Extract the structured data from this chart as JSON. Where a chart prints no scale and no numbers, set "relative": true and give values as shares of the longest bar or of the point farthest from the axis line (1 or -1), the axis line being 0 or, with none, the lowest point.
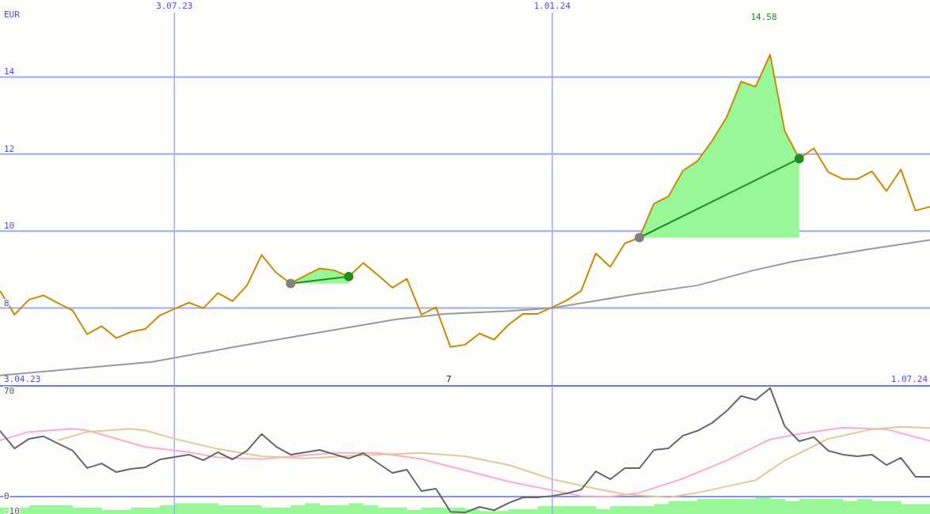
{
  "chart_data": [
    {
      "type": "line",
      "ylabel": "EUR",
      "xlim": [
        "2023-04-10",
        "2024-07-01"
      ],
      "ylim": [
        6,
        16
      ],
      "xticks": [
        {
          "value": "2023-07-03",
          "label": "3.07.23"
        },
        {
          "value": "2024-01-01",
          "label": "1.01.24"
        }
      ],
      "yticks": [
        8,
        10,
        12,
        14
      ],
      "grid": true,
      "x": [
        "2023-04-10",
        "2023-04-17",
        "2023-04-24",
        "2023-05-01",
        "2023-05-08",
        "2023-05-15",
        "2023-05-22",
        "2023-05-29",
        "2023-06-05",
        "2023-06-12",
        "2023-06-19",
        "2023-06-26",
        "2023-07-03",
        "2023-07-10",
        "2023-07-17",
        "2023-07-24",
        "2023-07-31",
        "2023-08-07",
        "2023-08-14",
        "2023-08-21",
        "2023-08-28",
        "2023-09-04",
        "2023-09-11",
        "2023-09-18",
        "2023-09-25",
        "2023-10-02",
        "2023-10-09",
        "2023-10-16",
        "2023-10-23",
        "2023-10-30",
        "2023-11-06",
        "2023-11-13",
        "2023-11-20",
        "2023-11-27",
        "2023-12-04",
        "2023-12-11",
        "2023-12-18",
        "2023-12-25",
        "2024-01-01",
        "2024-01-08",
        "2024-01-15",
        "2024-01-22",
        "2024-01-29",
        "2024-02-05",
        "2024-02-12",
        "2024-02-19",
        "2024-02-26",
        "2024-03-04",
        "2024-03-11",
        "2024-03-18",
        "2024-03-25",
        "2024-04-01",
        "2024-04-08",
        "2024-04-15",
        "2024-04-22",
        "2024-04-29",
        "2024-05-06",
        "2024-05-13",
        "2024-05-20",
        "2024-05-27",
        "2024-06-03",
        "2024-06-10",
        "2024-06-17",
        "2024-06-24",
        "2024-07-01"
      ],
      "series": [
        {
          "color": "#cc8800",
          "values": [
            8.45,
            7.83,
            8.22,
            8.33,
            8.13,
            7.94,
            7.32,
            7.53,
            7.22,
            7.38,
            7.46,
            7.81,
            7.98,
            8.14,
            8.0,
            8.39,
            8.18,
            8.59,
            9.38,
            8.92,
            8.64,
            8.84,
            9.03,
            8.98,
            8.82,
            9.17,
            8.86,
            8.53,
            8.76,
            7.83,
            8.02,
            6.99,
            7.05,
            7.34,
            7.18,
            7.57,
            7.85,
            7.85,
            8.02,
            8.2,
            8.45,
            9.42,
            9.07,
            9.68,
            9.83,
            10.71,
            10.9,
            11.57,
            11.82,
            12.34,
            12.95,
            13.88,
            13.75,
            14.58,
            12.6,
            11.88,
            12.15,
            11.53,
            11.35,
            11.35,
            11.55,
            11.04,
            11.6,
            10.53,
            10.63
          ],
          "lower": [
            null,
            null,
            null,
            null,
            null,
            null,
            null,
            null,
            null,
            null,
            null,
            null,
            null,
            null,
            null,
            null,
            null,
            null,
            null,
            null,
            8.64,
            8.64,
            8.64,
            8.64,
            8.64,
            null,
            null,
            null,
            null,
            null,
            null,
            null,
            null,
            null,
            null,
            null,
            null,
            null,
            null,
            null,
            null,
            null,
            null,
            null,
            9.83,
            9.83,
            9.83,
            9.83,
            9.83,
            9.83,
            9.83,
            9.83,
            9.83,
            9.83,
            9.83,
            9.83,
            null,
            null,
            null,
            null,
            null,
            null,
            null,
            null,
            null
          ],
          "upper": [
            null,
            null,
            null,
            null,
            null,
            null,
            null,
            null,
            null,
            null,
            null,
            null,
            null,
            null,
            null,
            null,
            null,
            null,
            null,
            null,
            8.64,
            8.84,
            9.03,
            8.98,
            8.82,
            null,
            null,
            null,
            null,
            null,
            null,
            null,
            null,
            null,
            null,
            null,
            null,
            null,
            null,
            null,
            null,
            null,
            null,
            null,
            9.83,
            10.71,
            10.9,
            11.57,
            11.82,
            12.34,
            12.95,
            13.88,
            13.75,
            14.58,
            12.6,
            11.88,
            null,
            null,
            null,
            null,
            null,
            null,
            null,
            null,
            null
          ]
        },
        {
          "color": "#999999",
          "x": [
            "2023-04-10",
            "2023-06-22",
            "2023-08-03",
            "2023-09-10",
            "2023-10-18",
            "2023-11-10",
            "2023-12-10",
            "2024-01-01",
            "2024-02-09",
            "2024-03-11",
            "2024-04-07",
            "2024-04-26",
            "2024-06-03",
            "2024-07-01"
          ],
          "values": [
            6.25,
            6.6,
            7.01,
            7.36,
            7.71,
            7.85,
            7.92,
            8.0,
            8.35,
            8.59,
            8.98,
            9.21,
            9.54,
            9.77
          ]
        },
        {
          "color": "#228b22",
          "marker": "circle",
          "colors": [
            "#808080",
            "#228b22"
          ],
          "x": [
            "2023-08-28",
            "2023-09-25"
          ],
          "values": [
            8.64,
            8.82
          ]
        },
        {
          "color": "#228b22",
          "marker": "circle",
          "colors": [
            "#808080",
            "#228b22"
          ],
          "x": [
            "2024-02-12",
            "2024-04-29"
          ],
          "values": [
            9.83,
            11.88
          ]
        }
      ],
      "annotations": [
        "14.58",
        "3.04.23",
        "1.07.24",
        "7"
      ]
    },
    {
      "type": "line",
      "xlim": [
        "2023-04-10",
        "2024-07-01"
      ],
      "ylim": [
        -11.5,
        73.5
      ],
      "xticks": [
        {
          "value": "2023-07-03",
          "label": null
        },
        {
          "value": "2024-01-01",
          "label": null
        }
      ],
      "yticks": [
        -10,
        0,
        70
      ],
      "grid": "x",
      "tick_labels": "y",
      "ref_lines": [
        {
          "axis": "y",
          "value": 0
        }
      ],
      "series": [
        {
          "color": "#ffaacc",
          "x": [
            "2023-04-10",
            "2023-04-24",
            "2023-05-15",
            "2023-05-22",
            "2023-06-19",
            "2023-07-10",
            "2023-07-24",
            "2023-08-14",
            "2023-09-04",
            "2023-09-18",
            "2023-10-09",
            "2023-10-30",
            "2023-11-13",
            "2023-12-11",
            "2024-01-01",
            "2024-01-15",
            "2024-01-29",
            "2024-02-12",
            "2024-03-04",
            "2024-03-25",
            "2024-04-15",
            "2024-04-29",
            "2024-05-20",
            "2024-06-10",
            "2024-07-01"
          ],
          "values": [
            37.4,
            43,
            45,
            44,
            33,
            29.5,
            26,
            25,
            27.4,
            29,
            29,
            25,
            20,
            10,
            4.2,
            0.5,
            0,
            2.6,
            12,
            24,
            38,
            41.6,
            45.8,
            44.7,
            37
          ]
        },
        {
          "color": "#e0c898",
          "x": [
            "2023-05-08",
            "2023-05-22",
            "2023-06-12",
            "2023-06-19",
            "2023-07-03",
            "2023-07-24",
            "2023-08-14",
            "2023-09-04",
            "2023-10-02",
            "2023-10-30",
            "2023-11-20",
            "2023-12-11",
            "2024-01-01",
            "2024-01-22",
            "2024-02-05",
            "2024-02-26",
            "2024-03-11",
            "2024-04-08",
            "2024-04-22",
            "2024-05-13",
            "2024-06-03",
            "2024-06-17",
            "2024-07-01"
          ],
          "values": [
            37.4,
            43,
            45,
            44,
            38.4,
            31.6,
            26.8,
            25.3,
            27.4,
            29,
            26.8,
            21,
            11.6,
            5.3,
            1.6,
            -0.5,
            2.6,
            11,
            24,
            38.4,
            44.7,
            46.3,
            45.5
          ]
        },
        {
          "color": "#666666",
          "x": [
            "2023-04-10",
            "2023-04-17",
            "2023-04-24",
            "2023-05-01",
            "2023-05-15",
            "2023-05-22",
            "2023-05-29",
            "2023-06-05",
            "2023-06-12",
            "2023-06-19",
            "2023-06-26",
            "2023-07-10",
            "2023-07-17",
            "2023-07-24",
            "2023-07-31",
            "2023-08-07",
            "2023-08-14",
            "2023-08-21",
            "2023-08-28",
            "2023-09-11",
            "2023-09-25",
            "2023-10-02",
            "2023-10-16",
            "2023-10-23",
            "2023-10-30",
            "2023-11-06",
            "2023-11-13",
            "2023-11-20",
            "2023-11-27",
            "2023-12-04",
            "2023-12-11",
            "2023-12-18",
            "2023-12-25",
            "2024-01-01",
            "2024-01-08",
            "2024-01-15",
            "2024-01-22",
            "2024-01-29",
            "2024-02-05",
            "2024-02-12",
            "2024-02-19",
            "2024-02-26",
            "2024-03-04",
            "2024-03-11",
            "2024-03-18",
            "2024-03-25",
            "2024-04-01",
            "2024-04-08",
            "2024-04-15",
            "2024-04-22",
            "2024-04-29",
            "2024-05-06",
            "2024-05-13",
            "2024-05-20",
            "2024-05-27",
            "2024-06-03",
            "2024-06-10",
            "2024-06-17",
            "2024-06-24",
            "2024-07-01"
          ],
          "values": [
            43.7,
            32,
            38.4,
            40,
            30.5,
            19,
            22,
            16.3,
            18.4,
            19.5,
            24.7,
            27.9,
            24.2,
            29.5,
            24.7,
            30.5,
            41.6,
            33.2,
            27.9,
            31,
            25.3,
            28.9,
            15.8,
            17.9,
            3.7,
            5.3,
            -10,
            -10.5,
            -6.8,
            -9,
            -4.2,
            -0.5,
            -0.5,
            0.5,
            2.1,
            4.7,
            16.8,
            11.6,
            18.9,
            18.9,
            31,
            32.1,
            40.5,
            43.7,
            48.9,
            56.8,
            66.8,
            64.2,
            72.1,
            46.8,
            36.8,
            39.5,
            30.5,
            27.9,
            26.8,
            27.9,
            21,
            25.8,
            13.2,
            13.2
          ]
        }
      ]
    },
    {
      "type": "bar",
      "relative": true,
      "color": "#98f898",
      "categories": [
        null,
        null,
        null,
        null,
        null,
        null,
        null,
        null,
        null,
        null,
        null,
        null,
        null,
        null,
        null,
        null,
        null,
        null,
        null,
        null,
        null,
        null,
        null,
        null,
        null,
        null,
        null,
        null,
        null,
        null,
        null,
        null,
        null,
        null,
        null,
        null,
        null,
        null,
        null,
        null,
        null,
        null,
        null,
        null,
        null,
        null,
        null,
        null,
        null,
        null,
        null,
        null,
        null,
        null,
        null,
        null,
        null,
        null,
        null,
        null,
        null,
        null,
        null,
        null
      ],
      "values": [
        0.37,
        0.37,
        0.5,
        0.5,
        0.5,
        0.37,
        0.37,
        0.23,
        0.23,
        0.37,
        0.37,
        0.5,
        0.62,
        0.62,
        0.62,
        0.5,
        0.5,
        0.5,
        0.37,
        0.37,
        0.5,
        0.62,
        0.5,
        0.5,
        0.62,
        0.5,
        0.37,
        0.37,
        0.23,
        0.37,
        0.37,
        0.37,
        0.28,
        0.17,
        0.17,
        0.28,
        0.28,
        0.45,
        0.45,
        0.45,
        0.45,
        0.28,
        0.45,
        0.45,
        0.45,
        0.57,
        0.74,
        0.74,
        0.87,
        0.87,
        0.87,
        0.87,
        1,
        0.87,
        0.74,
        0.87,
        0.87,
        0.87,
        0.74,
        0.87,
        0.74,
        0.74,
        0.57,
        0.57
      ]
    }
  ]
}
